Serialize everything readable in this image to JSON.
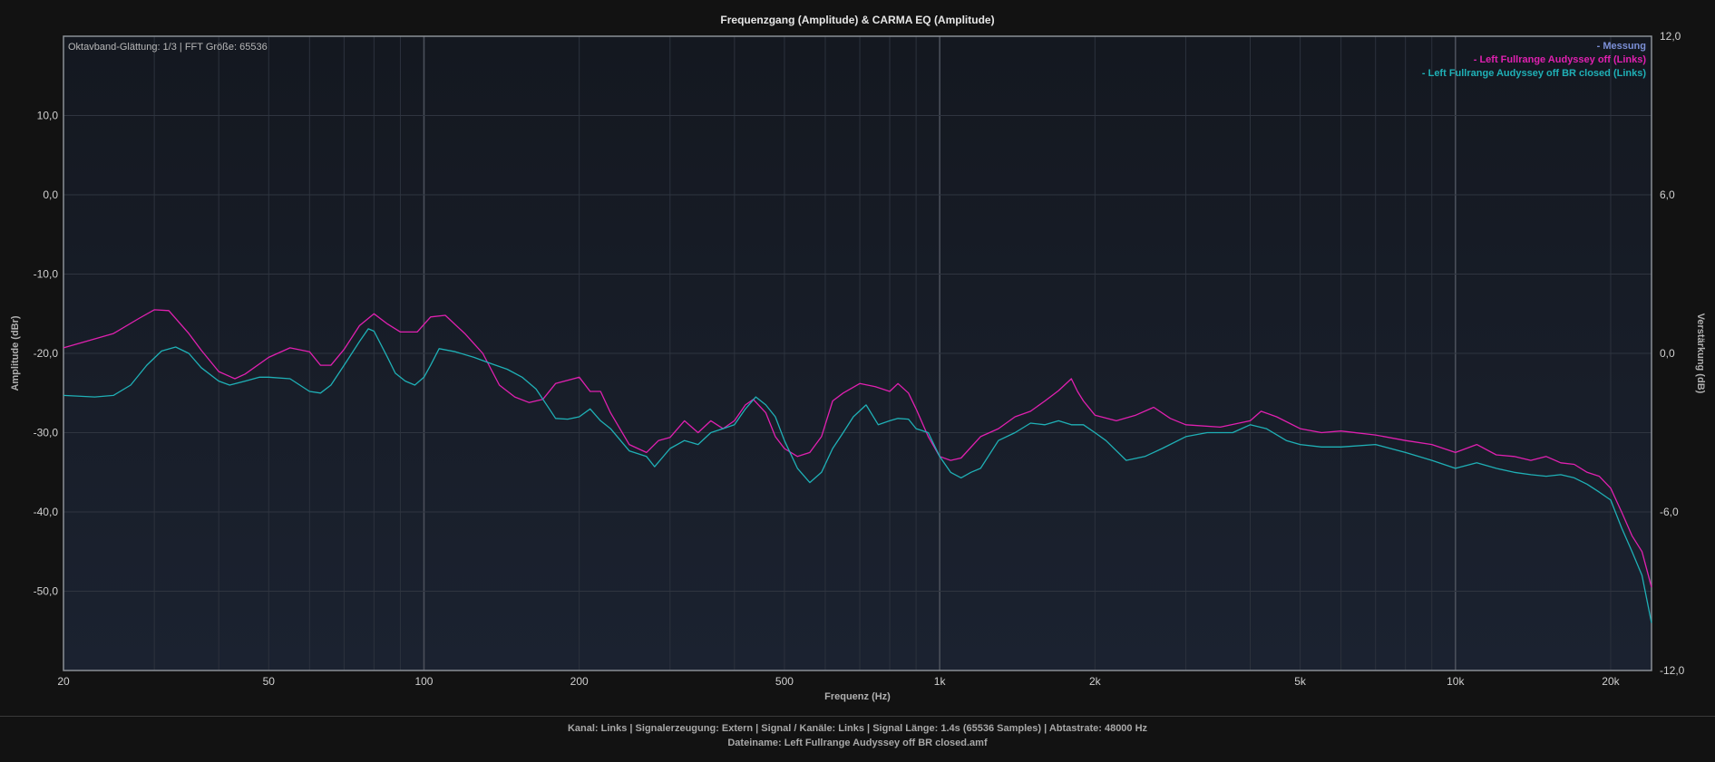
{
  "chart_data": {
    "type": "line",
    "title": "Frequenzgang (Amplitude) & CARMA EQ (Amplitude)",
    "info_text": "Oktavband-Glättung: 1/3 | FFT Größe: 65536",
    "xlabel": "Frequenz (Hz)",
    "ylabel": "Amplitude (dBr)",
    "y2label": "Verstärkung (dB)",
    "x_scale": "log",
    "xlim": [
      20,
      24000
    ],
    "ylim": [
      -60,
      20
    ],
    "y2lim": [
      -12,
      12
    ],
    "grid": true,
    "legend_position": "top-right",
    "xticks": [
      {
        "value": 20,
        "label": "20"
      },
      {
        "value": 50,
        "label": "50"
      },
      {
        "value": 100,
        "label": "100"
      },
      {
        "value": 200,
        "label": "200"
      },
      {
        "value": 500,
        "label": "500"
      },
      {
        "value": 1000,
        "label": "1k"
      },
      {
        "value": 2000,
        "label": "2k"
      },
      {
        "value": 5000,
        "label": "5k"
      },
      {
        "value": 10000,
        "label": "10k"
      },
      {
        "value": 20000,
        "label": "20k"
      }
    ],
    "yticks": [
      {
        "value": 10,
        "label": "10,0"
      },
      {
        "value": 0,
        "label": "0,0"
      },
      {
        "value": -10,
        "label": "-10,0"
      },
      {
        "value": -20,
        "label": "-20,0"
      },
      {
        "value": -30,
        "label": "-30,0"
      },
      {
        "value": -40,
        "label": "-40,0"
      },
      {
        "value": -50,
        "label": "-50,0"
      }
    ],
    "y2ticks": [
      {
        "value": 12,
        "label": "12,0"
      },
      {
        "value": 6,
        "label": "6,0"
      },
      {
        "value": 0,
        "label": "0,0"
      },
      {
        "value": -6,
        "label": "-6,0"
      },
      {
        "value": -12,
        "label": "-12,0"
      }
    ],
    "legend": [
      {
        "label": "- Messung",
        "color": "#7b8fd6"
      },
      {
        "label": "- Left Fullrange Audyssey off (Links)",
        "color": "#e020b0"
      },
      {
        "label": "- Left Fullrange Audyssey off BR closed (Links)",
        "color": "#1fb0b6"
      }
    ],
    "series": [
      {
        "name": "Left Fullrange Audyssey off (Links)",
        "color": "#e020b0",
        "points": [
          [
            20,
            -19.3
          ],
          [
            25,
            -17.5
          ],
          [
            28,
            -15.6
          ],
          [
            30,
            -14.5
          ],
          [
            32,
            -14.6
          ],
          [
            35,
            -17.5
          ],
          [
            37,
            -19.6
          ],
          [
            40,
            -22.3
          ],
          [
            43,
            -23.2
          ],
          [
            45,
            -22.6
          ],
          [
            50,
            -20.5
          ],
          [
            55,
            -19.3
          ],
          [
            60,
            -19.8
          ],
          [
            63,
            -21.5
          ],
          [
            66,
            -21.5
          ],
          [
            70,
            -19.5
          ],
          [
            75,
            -16.5
          ],
          [
            80,
            -15.0
          ],
          [
            85,
            -16.3
          ],
          [
            90,
            -17.3
          ],
          [
            97,
            -17.3
          ],
          [
            103,
            -15.4
          ],
          [
            110,
            -15.2
          ],
          [
            120,
            -17.5
          ],
          [
            130,
            -20.0
          ],
          [
            140,
            -24.0
          ],
          [
            150,
            -25.5
          ],
          [
            160,
            -26.2
          ],
          [
            170,
            -25.8
          ],
          [
            180,
            -23.8
          ],
          [
            200,
            -23.0
          ],
          [
            210,
            -24.8
          ],
          [
            220,
            -24.8
          ],
          [
            230,
            -27.5
          ],
          [
            250,
            -31.5
          ],
          [
            270,
            -32.5
          ],
          [
            285,
            -31.0
          ],
          [
            300,
            -30.6
          ],
          [
            320,
            -28.5
          ],
          [
            340,
            -30.0
          ],
          [
            360,
            -28.5
          ],
          [
            380,
            -29.5
          ],
          [
            400,
            -28.5
          ],
          [
            420,
            -26.5
          ],
          [
            435,
            -25.8
          ],
          [
            460,
            -27.5
          ],
          [
            480,
            -30.5
          ],
          [
            500,
            -32.0
          ],
          [
            530,
            -33.0
          ],
          [
            560,
            -32.5
          ],
          [
            590,
            -30.5
          ],
          [
            620,
            -26.0
          ],
          [
            650,
            -25.0
          ],
          [
            700,
            -23.8
          ],
          [
            750,
            -24.2
          ],
          [
            800,
            -24.8
          ],
          [
            830,
            -23.8
          ],
          [
            870,
            -25.0
          ],
          [
            900,
            -27.0
          ],
          [
            950,
            -30.5
          ],
          [
            1000,
            -33.0
          ],
          [
            1050,
            -33.5
          ],
          [
            1100,
            -33.2
          ],
          [
            1200,
            -30.5
          ],
          [
            1300,
            -29.5
          ],
          [
            1400,
            -28.0
          ],
          [
            1500,
            -27.3
          ],
          [
            1600,
            -26.0
          ],
          [
            1700,
            -24.7
          ],
          [
            1800,
            -23.2
          ],
          [
            1850,
            -24.8
          ],
          [
            1900,
            -26.0
          ],
          [
            2000,
            -27.8
          ],
          [
            2200,
            -28.5
          ],
          [
            2400,
            -27.8
          ],
          [
            2600,
            -26.8
          ],
          [
            2800,
            -28.2
          ],
          [
            3000,
            -29.0
          ],
          [
            3500,
            -29.3
          ],
          [
            4000,
            -28.5
          ],
          [
            4200,
            -27.3
          ],
          [
            4500,
            -28.0
          ],
          [
            5000,
            -29.5
          ],
          [
            5500,
            -30.0
          ],
          [
            6000,
            -29.8
          ],
          [
            7000,
            -30.3
          ],
          [
            8000,
            -31.0
          ],
          [
            9000,
            -31.5
          ],
          [
            10000,
            -32.5
          ],
          [
            11000,
            -31.5
          ],
          [
            12000,
            -32.8
          ],
          [
            13000,
            -33.0
          ],
          [
            14000,
            -33.5
          ],
          [
            15000,
            -33.0
          ],
          [
            16000,
            -33.8
          ],
          [
            17000,
            -34.0
          ],
          [
            18000,
            -35.0
          ],
          [
            19000,
            -35.5
          ],
          [
            20000,
            -37.0
          ],
          [
            21000,
            -40.0
          ],
          [
            22000,
            -43.0
          ],
          [
            23000,
            -45.0
          ],
          [
            24000,
            -49.5
          ]
        ]
      },
      {
        "name": "Left Fullrange Audyssey off BR closed (Links)",
        "color": "#1fb0b6",
        "points": [
          [
            20,
            -25.3
          ],
          [
            23,
            -25.5
          ],
          [
            25,
            -25.3
          ],
          [
            27,
            -24.0
          ],
          [
            29,
            -21.5
          ],
          [
            31,
            -19.7
          ],
          [
            33,
            -19.2
          ],
          [
            35,
            -20.0
          ],
          [
            37,
            -21.8
          ],
          [
            40,
            -23.5
          ],
          [
            42,
            -24.0
          ],
          [
            45,
            -23.5
          ],
          [
            48,
            -23.0
          ],
          [
            50,
            -23.0
          ],
          [
            55,
            -23.2
          ],
          [
            60,
            -24.8
          ],
          [
            63,
            -25.0
          ],
          [
            66,
            -24.0
          ],
          [
            70,
            -21.5
          ],
          [
            75,
            -18.5
          ],
          [
            78,
            -16.9
          ],
          [
            80,
            -17.2
          ],
          [
            85,
            -20.5
          ],
          [
            88,
            -22.5
          ],
          [
            92,
            -23.5
          ],
          [
            96,
            -24.0
          ],
          [
            100,
            -23.0
          ],
          [
            103,
            -21.5
          ],
          [
            107,
            -19.4
          ],
          [
            115,
            -19.8
          ],
          [
            125,
            -20.5
          ],
          [
            135,
            -21.3
          ],
          [
            145,
            -22.0
          ],
          [
            155,
            -23.0
          ],
          [
            165,
            -24.5
          ],
          [
            175,
            -27.0
          ],
          [
            180,
            -28.2
          ],
          [
            190,
            -28.3
          ],
          [
            200,
            -28.0
          ],
          [
            210,
            -27.0
          ],
          [
            220,
            -28.5
          ],
          [
            230,
            -29.5
          ],
          [
            250,
            -32.3
          ],
          [
            270,
            -33.0
          ],
          [
            280,
            -34.3
          ],
          [
            300,
            -32.0
          ],
          [
            320,
            -31.0
          ],
          [
            340,
            -31.5
          ],
          [
            360,
            -30.0
          ],
          [
            380,
            -29.5
          ],
          [
            400,
            -29.0
          ],
          [
            420,
            -27.0
          ],
          [
            440,
            -25.5
          ],
          [
            460,
            -26.5
          ],
          [
            480,
            -28.0
          ],
          [
            500,
            -31.0
          ],
          [
            530,
            -34.5
          ],
          [
            560,
            -36.3
          ],
          [
            590,
            -35.0
          ],
          [
            620,
            -32.0
          ],
          [
            650,
            -30.0
          ],
          [
            680,
            -28.0
          ],
          [
            720,
            -26.5
          ],
          [
            760,
            -29.0
          ],
          [
            800,
            -28.5
          ],
          [
            830,
            -28.2
          ],
          [
            870,
            -28.3
          ],
          [
            900,
            -29.5
          ],
          [
            950,
            -30.0
          ],
          [
            1000,
            -33.0
          ],
          [
            1050,
            -35.0
          ],
          [
            1100,
            -35.7
          ],
          [
            1150,
            -35.0
          ],
          [
            1200,
            -34.5
          ],
          [
            1300,
            -31.0
          ],
          [
            1400,
            -30.0
          ],
          [
            1500,
            -28.8
          ],
          [
            1600,
            -29.0
          ],
          [
            1700,
            -28.5
          ],
          [
            1800,
            -29.0
          ],
          [
            1900,
            -29.0
          ],
          [
            2000,
            -30.0
          ],
          [
            2100,
            -31.0
          ],
          [
            2300,
            -33.5
          ],
          [
            2500,
            -33.0
          ],
          [
            2700,
            -32.0
          ],
          [
            3000,
            -30.5
          ],
          [
            3300,
            -30.0
          ],
          [
            3700,
            -30.0
          ],
          [
            4000,
            -29.0
          ],
          [
            4300,
            -29.5
          ],
          [
            4700,
            -31.0
          ],
          [
            5000,
            -31.5
          ],
          [
            5500,
            -31.8
          ],
          [
            6000,
            -31.8
          ],
          [
            7000,
            -31.5
          ],
          [
            8000,
            -32.5
          ],
          [
            9000,
            -33.5
          ],
          [
            10000,
            -34.5
          ],
          [
            11000,
            -33.8
          ],
          [
            12000,
            -34.5
          ],
          [
            13000,
            -35.0
          ],
          [
            14000,
            -35.3
          ],
          [
            15000,
            -35.5
          ],
          [
            16000,
            -35.3
          ],
          [
            17000,
            -35.7
          ],
          [
            18000,
            -36.5
          ],
          [
            19000,
            -37.5
          ],
          [
            20000,
            -38.5
          ],
          [
            21000,
            -42.0
          ],
          [
            22000,
            -45.0
          ],
          [
            23000,
            -48.0
          ],
          [
            24000,
            -54.0
          ]
        ]
      }
    ]
  },
  "footer": {
    "line1": "Kanal: Links  |  Signalerzeugung: Extern   |  Signal / Kanäle: Links  |  Signal Länge: 1.4s (65536 Samples)  |  Abtastrate: 48000 Hz",
    "line2": "Dateiname: Left Fullrange Audyssey off BR closed.amf"
  }
}
